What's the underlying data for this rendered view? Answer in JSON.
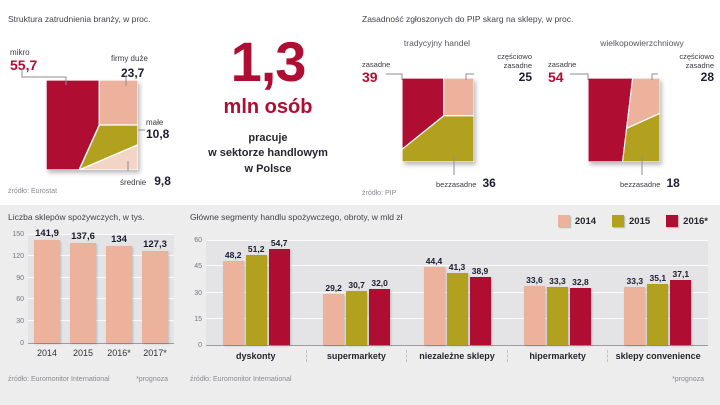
{
  "colors": {
    "red": "#b00d33",
    "salmon": "#ecb29c",
    "olive": "#b2a01f",
    "pink": "#f4d4c5",
    "panel_gray": "#ededee"
  },
  "employment": {
    "title": "Struktura zatrudnienia branży, w proc.",
    "source": "źródło: Eurostat",
    "labels": [
      "mikro",
      "firmy duże",
      "małe",
      "średnie"
    ],
    "values": [
      "55,7",
      "23,7",
      "10,8",
      "9,8"
    ]
  },
  "headline": {
    "number": "1,3",
    "unit": "mln osób",
    "lines": [
      "pracuje",
      "w sektorze handlowym",
      "w Polsce"
    ]
  },
  "pip": {
    "title": "Zasadność zgłoszonych do PIP skarg na sklepy, w proc.",
    "source": "źródło: PIP",
    "groups": [
      {
        "name": "tradycyjny handel",
        "zasadne_label": "zasadne",
        "zasadne": "39",
        "czesciowo_label": "częściowo zasadne",
        "czesciowo": "25",
        "bezzasadne_label": "bezzasadne",
        "bezzasadne": "36"
      },
      {
        "name": "wielkopowierzchniowy",
        "zasadne_label": "zasadne",
        "zasadne": "54",
        "czesciowo_label": "częściowo zasadne",
        "czesciowo": "28",
        "bezzasadne_label": "bezzasadne",
        "bezzasadne": "18"
      }
    ]
  },
  "stores": {
    "title": "Liczba sklepów spożywczych, w tys.",
    "source": "źródło: Euromonitor International",
    "note": "*prognoza",
    "yticks": [
      "150",
      "120",
      "90",
      "60",
      "30",
      "0"
    ],
    "categories": [
      "2014",
      "2015",
      "2016*",
      "2017*"
    ],
    "values": [
      "141,9",
      "137,6",
      "134",
      "127,3"
    ]
  },
  "segments": {
    "title": "Główne segmenty handlu spożywczego, obroty, w mld zł",
    "source": "źródło: Euromonitor International",
    "note": "*prognoza",
    "legend": [
      "2014",
      "2015",
      "2016*"
    ],
    "yticks": [
      "60",
      "45",
      "30",
      "15",
      "0"
    ],
    "categories": [
      "dyskonty",
      "supermarkety",
      "niezależne sklepy",
      "hipermarkety",
      "sklepy convenience"
    ],
    "values": [
      [
        "48,2",
        "29,2",
        "44,4",
        "33,6",
        "33,3"
      ],
      [
        "51,2",
        "30,7",
        "41,3",
        "33,3",
        "35,1"
      ],
      [
        "54,7",
        "32,0",
        "38,9",
        "32,8",
        "37,1"
      ]
    ]
  },
  "chart_data": [
    {
      "type": "pie",
      "title": "Struktura zatrudnienia branży, w proc.",
      "labels": [
        "mikro",
        "firmy duże",
        "małe",
        "średnie"
      ],
      "values": [
        55.7,
        23.7,
        10.8,
        9.8
      ],
      "source": "źródło: Eurostat"
    },
    {
      "type": "pie",
      "title": "Zasadność zgłoszonych do PIP skarg na sklepy, w proc. — tradycyjny handel",
      "labels": [
        "zasadne",
        "częściowo zasadne",
        "bezzasadne"
      ],
      "values": [
        39,
        25,
        36
      ],
      "source": "źródło: PIP"
    },
    {
      "type": "pie",
      "title": "Zasadność zgłoszonych do PIP skarg na sklepy, w proc. — wielkopowierzchniowy",
      "labels": [
        "zasadne",
        "częściowo zasadne",
        "bezzasadne"
      ],
      "values": [
        54,
        28,
        18
      ],
      "source": "źródło: PIP"
    },
    {
      "type": "bar",
      "title": "Liczba sklepów spożywczych, w tys.",
      "categories": [
        "2014",
        "2015",
        "2016*",
        "2017*"
      ],
      "values": [
        141.9,
        137.6,
        134,
        127.3
      ],
      "ylim": [
        0,
        150
      ],
      "y_ticks": [
        0,
        30,
        60,
        90,
        120,
        150
      ],
      "grid": true,
      "source": "źródło: Euromonitor International",
      "note": "*prognoza"
    },
    {
      "type": "bar",
      "title": "Główne segmenty handlu spożywczego, obroty, w mld zł",
      "categories": [
        "dyskonty",
        "supermarkety",
        "niezależne sklepy",
        "hipermarkety",
        "sklepy convenience"
      ],
      "series": [
        {
          "name": "2014",
          "values": [
            48.2,
            29.2,
            44.4,
            33.6,
            33.3
          ]
        },
        {
          "name": "2015",
          "values": [
            51.2,
            30.7,
            41.3,
            33.3,
            35.1
          ]
        },
        {
          "name": "2016*",
          "values": [
            54.7,
            32.0,
            38.9,
            32.8,
            37.1
          ]
        }
      ],
      "ylim": [
        0,
        60
      ],
      "y_ticks": [
        0,
        15,
        30,
        45,
        60
      ],
      "grid": true,
      "legend_position": "top-right",
      "source": "źródło: Euromonitor International",
      "note": "*prognoza"
    }
  ]
}
